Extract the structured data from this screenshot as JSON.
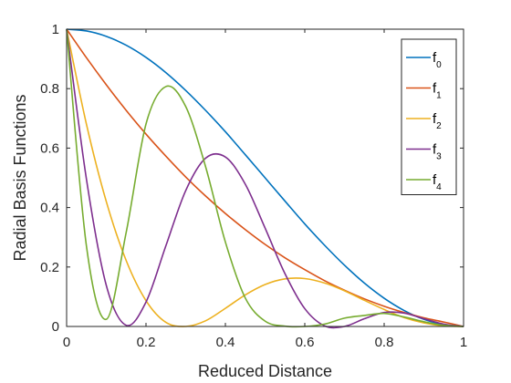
{
  "chart_data": {
    "type": "line",
    "title": "",
    "xlabel": "Reduced Distance",
    "ylabel": "Radial Basis Functions",
    "xlim": [
      0,
      1
    ],
    "ylim": [
      0,
      1
    ],
    "xticks": [
      0,
      0.2,
      0.4,
      0.6,
      0.8,
      1
    ],
    "yticks": [
      0,
      0.2,
      0.4,
      0.6,
      0.8,
      1
    ],
    "xtick_labels": [
      "0",
      "0.2",
      "0.4",
      "0.6",
      "0.8",
      "1"
    ],
    "ytick_labels": [
      "0",
      "0.2",
      "0.4",
      "0.6",
      "0.8",
      "1"
    ],
    "grid": false,
    "legend_position": "top-right",
    "x": [
      0,
      0.05,
      0.1,
      0.15,
      0.2,
      0.25,
      0.3,
      0.35,
      0.4,
      0.45,
      0.5,
      0.55,
      0.6,
      0.65,
      0.7,
      0.75,
      0.8,
      0.85,
      0.9,
      0.95,
      1.0
    ],
    "series": [
      {
        "name_base": "f",
        "name_sub": "0",
        "color": "#0072BD",
        "values": [
          1.0,
          0.994,
          0.976,
          0.946,
          0.905,
          0.854,
          0.794,
          0.727,
          0.655,
          0.578,
          0.5,
          0.422,
          0.345,
          0.273,
          0.206,
          0.146,
          0.095,
          0.054,
          0.024,
          0.006,
          0.0
        ]
      },
      {
        "name_base": "f",
        "name_sub": "1",
        "color": "#D95319",
        "values": [
          1.0,
          0.904,
          0.813,
          0.727,
          0.647,
          0.573,
          0.503,
          0.439,
          0.38,
          0.326,
          0.276,
          0.231,
          0.191,
          0.154,
          0.122,
          0.093,
          0.068,
          0.047,
          0.029,
          0.015,
          0.0
        ]
      },
      {
        "name_base": "f",
        "name_sub": "2",
        "color": "#EDB120",
        "values": [
          1.0,
          0.68,
          0.42,
          0.222,
          0.087,
          0.014,
          0.0,
          0.019,
          0.061,
          0.106,
          0.141,
          0.16,
          0.161,
          0.146,
          0.12,
          0.088,
          0.057,
          0.03,
          0.012,
          0.002,
          0.0
        ]
      },
      {
        "name_base": "f",
        "name_sub": "3",
        "color": "#7E2F8E",
        "values": [
          1.0,
          0.495,
          0.138,
          0.004,
          0.082,
          0.271,
          0.457,
          0.566,
          0.57,
          0.479,
          0.331,
          0.178,
          0.06,
          0.002,
          0.0,
          0.026,
          0.047,
          0.045,
          0.026,
          0.008,
          0.0
        ]
      },
      {
        "name_base": "f",
        "name_sub": "4",
        "color": "#77AC30",
        "values": [
          1.0,
          0.27,
          0.024,
          0.316,
          0.681,
          0.807,
          0.74,
          0.538,
          0.284,
          0.096,
          0.018,
          0.001,
          0.0,
          0.008,
          0.028,
          0.037,
          0.044,
          0.032,
          0.016,
          0.004,
          0.0
        ]
      }
    ]
  }
}
